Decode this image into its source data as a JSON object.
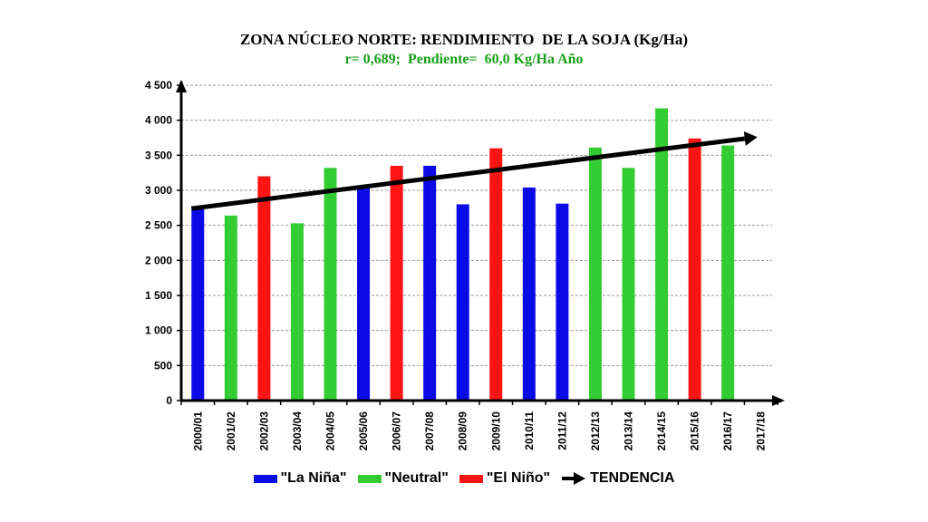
{
  "chart_data": {
    "type": "bar",
    "title": "ZONA NÚCLEO NORTE: RENDIMIENTO  DE LA SOJA (Kg/Ha)",
    "subtitle": "r= 0,689;  Pendiente=  60,0 Kg/Ha Año",
    "categories": [
      "2000/01",
      "2001/02",
      "2002/03",
      "2003/04",
      "2004/05",
      "2005/06",
      "2006/07",
      "2007/08",
      "2008/09",
      "2009/10",
      "2010/11",
      "2011/12",
      "2012/13",
      "2013/14",
      "2014/15",
      "2015/16",
      "2016/17",
      "2017/18"
    ],
    "values": [
      2740,
      2640,
      3200,
      2530,
      3320,
      3030,
      3350,
      3350,
      2800,
      3600,
      3040,
      2810,
      3610,
      3320,
      4170,
      3740,
      3640,
      null
    ],
    "phase": [
      "La Niña",
      "Neutral",
      "El Niño",
      "Neutral",
      "Neutral",
      "La Niña",
      "El Niño",
      "La Niña",
      "La Niña",
      "El Niño",
      "La Niña",
      "La Niña",
      "Neutral",
      "Neutral",
      "Neutral",
      "El Niño",
      "Neutral",
      null
    ],
    "ylim": [
      0,
      4500
    ],
    "yticks": [
      0,
      500,
      1000,
      1500,
      2000,
      2500,
      3000,
      3500,
      4000,
      4500
    ],
    "ytick_labels": [
      "0",
      "500",
      "1 000",
      "1 500",
      "2 000",
      "2 500",
      "3 000",
      "3 500",
      "4 000",
      "4 500"
    ],
    "xlabel": "",
    "ylabel": "",
    "grid": true,
    "trend": {
      "start_value": 2740,
      "end_value": 3760,
      "start_category": "2000/01",
      "end_category": "2017/18"
    },
    "legend": {
      "placement": "bottom",
      "entries": [
        {
          "key": "La Niña",
          "label": "\"La Niña\"",
          "color": "#0a0ae6"
        },
        {
          "key": "Neutral",
          "label": "\"Neutral\"",
          "color": "#33cc33"
        },
        {
          "key": "El Niño",
          "label": "\"El Niño\"",
          "color": "#ff1414"
        },
        {
          "key": "trend",
          "label": "TENDENCIA",
          "color": "#000000"
        }
      ]
    },
    "colors": {
      "title": "#000000",
      "subtitle": "#1a9f1a",
      "trend": "#000000"
    }
  }
}
